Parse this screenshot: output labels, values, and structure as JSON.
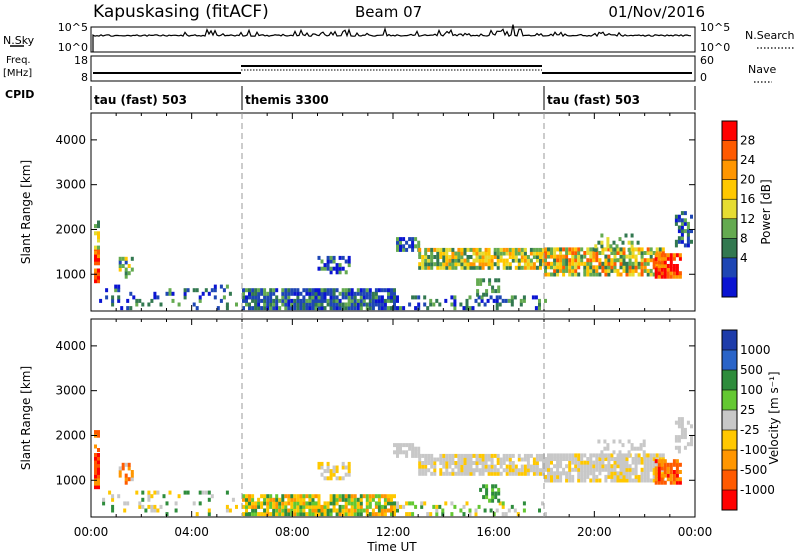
{
  "header": {
    "station": "Kapuskasing (fitACF)",
    "beam": "Beam 07",
    "date": "01/Nov/2016"
  },
  "labels": {
    "nsky": "N.Sky",
    "nsearch": "N.Search",
    "freq_line1": "Freq.",
    "freq_line2": "[MHz]",
    "nave": "Nave",
    "cpid": "CPID",
    "nsky_ticks": [
      "10^5",
      "10^0"
    ],
    "nsearch_ticks": [
      "10^5",
      "10^0"
    ],
    "freq_ticks": [
      "18",
      "8"
    ],
    "nave_ticks": [
      "60",
      "0"
    ]
  },
  "cpid_segments": [
    {
      "start": 0,
      "end": 6,
      "label": "tau (fast) 503"
    },
    {
      "start": 6,
      "end": 18,
      "label": "themis 3300"
    },
    {
      "start": 18,
      "end": 24,
      "label": "tau (fast) 503"
    }
  ],
  "chart_data": [
    {
      "type": "heatmap",
      "name": "power",
      "ylabel": "Slant Range [km]",
      "xlim": [
        0,
        24
      ],
      "ylim": [
        180,
        4600
      ],
      "yticks": [
        1000,
        2000,
        3000,
        4000
      ],
      "colorbar": {
        "label": "Power [dB]",
        "ticks": [
          "28",
          "24",
          "20",
          "16",
          "12",
          "8",
          "4"
        ],
        "colors": [
          "#ff0000",
          "#ff5a00",
          "#ff9600",
          "#ffc800",
          "#e6dc32",
          "#64aa50",
          "#327850",
          "#1e46b4",
          "#0a14d2"
        ]
      }
    },
    {
      "type": "heatmap",
      "name": "velocity",
      "ylabel": "Slant Range [km]",
      "xlabel": "Time UT",
      "xlim": [
        0,
        24
      ],
      "ylim": [
        180,
        4600
      ],
      "xticks": [
        "00:00",
        "04:00",
        "08:00",
        "12:00",
        "16:00",
        "20:00",
        "00:00"
      ],
      "yticks": [
        1000,
        2000,
        3000,
        4000
      ],
      "colorbar": {
        "label": "Velocity [m s⁻¹]",
        "ticks": [
          "1000",
          "500",
          "100",
          "25",
          "-25",
          "-100",
          "-500",
          "-1000"
        ],
        "colors": [
          "#1e3caa",
          "#2a64c8",
          "#2e8c3c",
          "#64c832",
          "#c8c8c8",
          "#ffc800",
          "#ff9600",
          "#ff5a00",
          "#ff0000"
        ]
      }
    }
  ],
  "colors": {
    "grey": "#c8c8c8",
    "gridline": "#999999"
  }
}
